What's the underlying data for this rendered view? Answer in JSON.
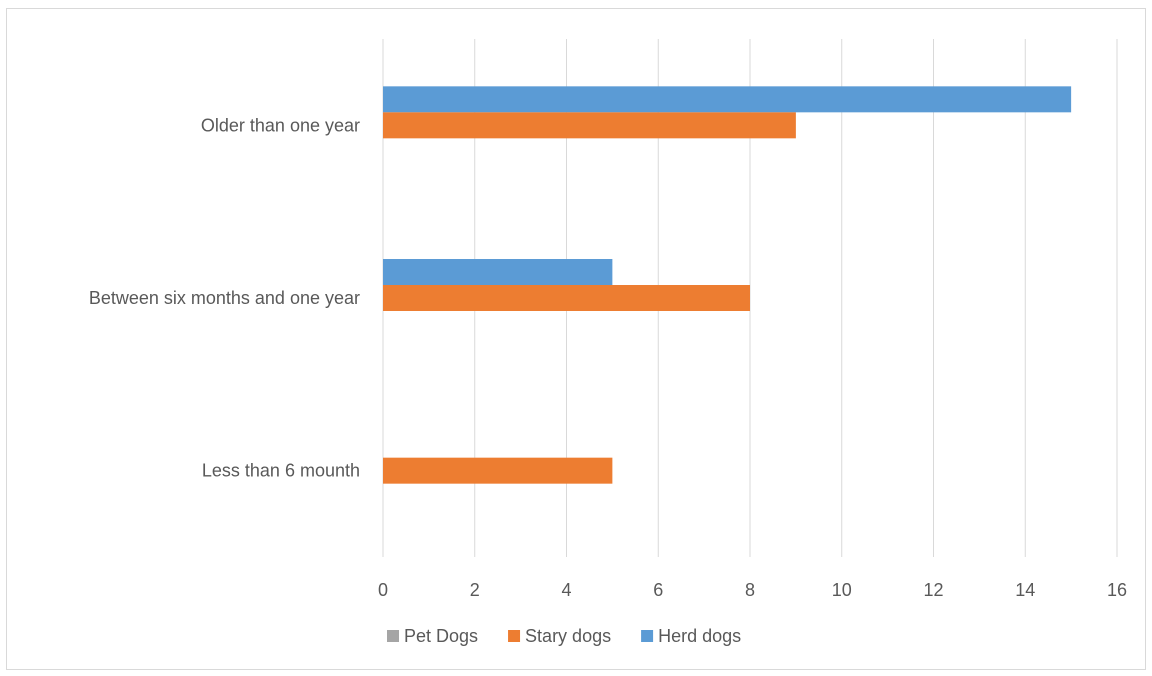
{
  "chart_data": {
    "type": "bar",
    "orientation": "horizontal",
    "categories": [
      "Less than 6 mounth",
      "Between six months and one year",
      "Older than one year"
    ],
    "series": [
      {
        "name": "Pet Dogs",
        "color": "#a5a5a5",
        "values": [
          0,
          0,
          0
        ]
      },
      {
        "name": "Stary dogs",
        "color": "#ed7d31",
        "values": [
          5,
          8,
          9
        ]
      },
      {
        "name": "Herd dogs",
        "color": "#5b9bd5",
        "values": [
          0,
          5,
          15
        ]
      }
    ],
    "xlim": [
      0,
      16
    ],
    "xticks": [
      0,
      2,
      4,
      6,
      8,
      10,
      12,
      14,
      16
    ],
    "grid": true,
    "legend_position": "bottom",
    "title": "",
    "xlabel": "",
    "ylabel": ""
  }
}
